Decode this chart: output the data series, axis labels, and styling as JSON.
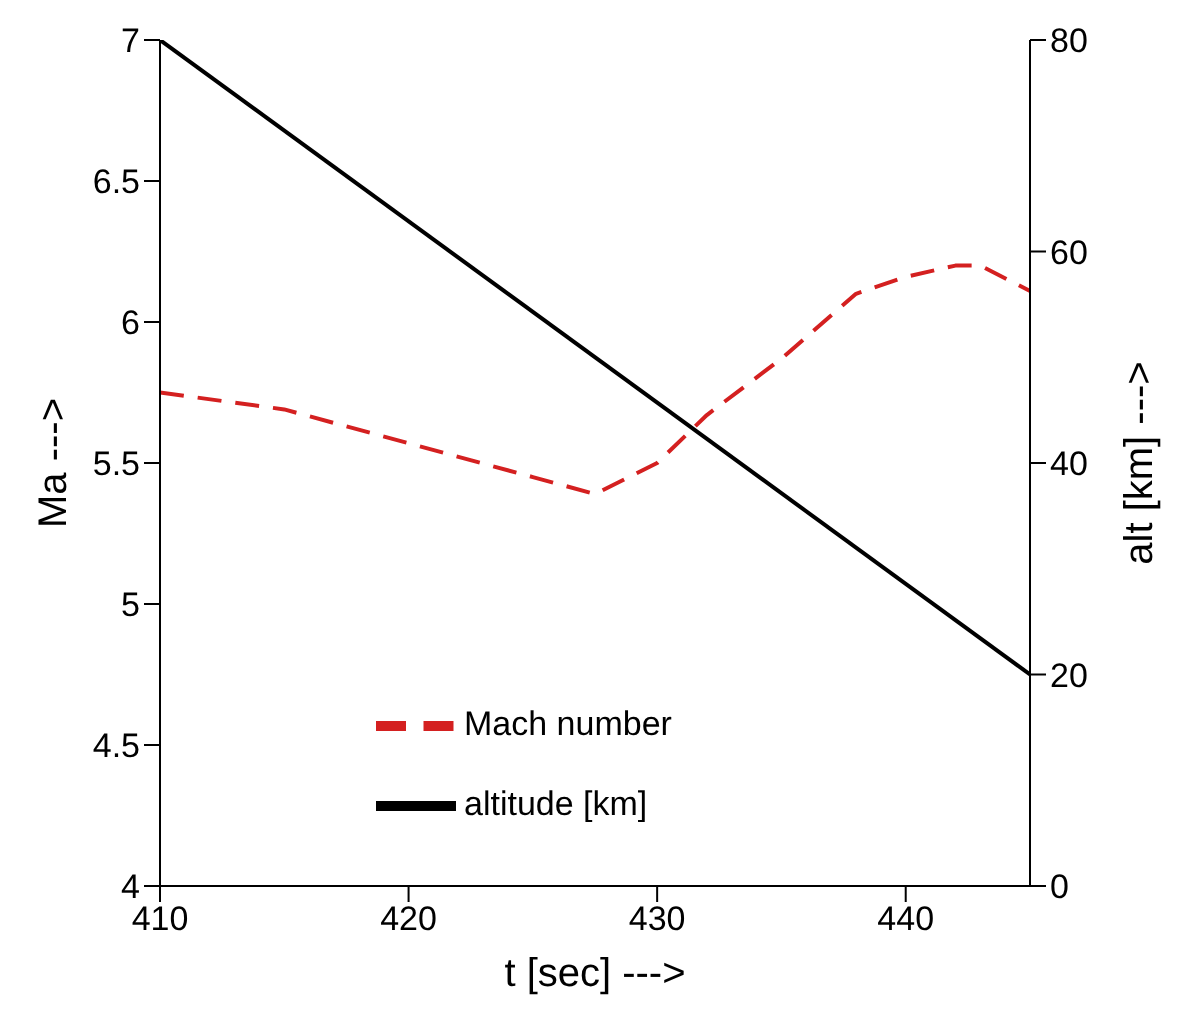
{
  "chart_data": {
    "type": "line",
    "xlabel": "t [sec] --->",
    "ylabel": "Ma --->",
    "y2label": "alt [km] --->",
    "xlim": [
      410,
      445
    ],
    "xticks": [
      410,
      420,
      430,
      440
    ],
    "ylim": [
      4,
      7
    ],
    "yticks": [
      4,
      4.5,
      5,
      5.5,
      6,
      6.5,
      7
    ],
    "y2lim": [
      0,
      80
    ],
    "y2ticks": [
      0,
      20,
      40,
      60,
      80
    ],
    "grid": false,
    "legend": "bottom",
    "marker": "none",
    "series": [
      {
        "name": "altitude [km]",
        "color": "#000000",
        "axis": "y2",
        "line_style": "solid",
        "x": [
          410,
          445
        ],
        "values": [
          80,
          20
        ]
      },
      {
        "name": "Mach number",
        "color": "#d42020",
        "line_style": "dashed",
        "x": [
          410,
          415,
          420,
          425,
          427.5,
          430,
          432,
          435,
          438,
          440,
          442,
          443,
          445
        ],
        "values": [
          5.75,
          5.69,
          5.57,
          5.45,
          5.39,
          5.5,
          5.67,
          5.87,
          6.1,
          6.16,
          6.2,
          6.2,
          6.11
        ]
      }
    ]
  }
}
